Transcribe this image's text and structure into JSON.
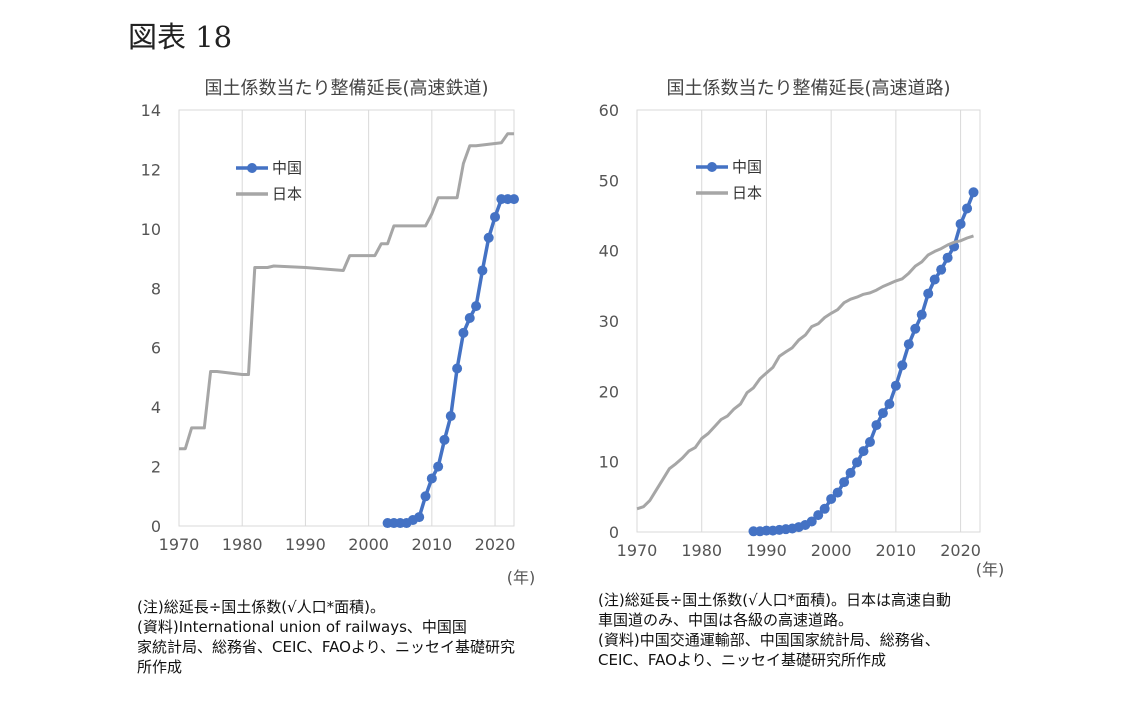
{
  "figure_label": "図表 18",
  "chart_data": [
    {
      "type": "line",
      "title": "国土係数当たり整備延長(高速鉄道)",
      "xlabel": "(年)",
      "ylim": [
        0,
        14
      ],
      "xlim": [
        1970,
        2023
      ],
      "xticks": [
        "1970",
        "1980",
        "1990",
        "2000",
        "2010",
        "2020"
      ],
      "yticks": [
        "0",
        "2",
        "4",
        "6",
        "8",
        "10",
        "12",
        "14"
      ],
      "legend": [
        "中国",
        "日本"
      ],
      "legend_position": "upper-left",
      "colors": {
        "中国": "#4472C4",
        "日本": "#A6A6A6"
      },
      "series": [
        {
          "name": "中国",
          "markers": true,
          "x": [
            2003,
            2004,
            2005,
            2006,
            2007,
            2008,
            2009,
            2010,
            2011,
            2012,
            2013,
            2014,
            2015,
            2016,
            2017,
            2018,
            2019,
            2020,
            2021,
            2022,
            2023
          ],
          "y": [
            0.1,
            0.1,
            0.1,
            0.1,
            0.2,
            0.3,
            1.0,
            1.6,
            2.0,
            2.9,
            3.7,
            5.3,
            6.5,
            7.0,
            7.4,
            8.6,
            9.7,
            10.4,
            11.0,
            11.0,
            11.0
          ]
        },
        {
          "name": "日本",
          "markers": false,
          "x": [
            1970,
            1971,
            1972,
            1973,
            1974,
            1975,
            1976,
            1980,
            1981,
            1982,
            1983,
            1984,
            1985,
            1990,
            1996,
            1997,
            1998,
            2001,
            2002,
            2003,
            2004,
            2005,
            2006,
            2009,
            2010,
            2011,
            2014,
            2015,
            2016,
            2017,
            2019,
            2021,
            2022,
            2023
          ],
          "y": [
            2.6,
            2.6,
            3.3,
            3.3,
            3.3,
            5.2,
            5.2,
            5.1,
            5.1,
            8.7,
            8.7,
            8.7,
            8.75,
            8.7,
            8.6,
            9.1,
            9.1,
            9.1,
            9.5,
            9.5,
            10.1,
            10.1,
            10.1,
            10.1,
            10.5,
            11.05,
            11.05,
            12.2,
            12.8,
            12.8,
            12.85,
            12.9,
            13.2,
            13.2
          ]
        }
      ]
    },
    {
      "type": "line",
      "title": "国土係数当たり整備延長(高速道路)",
      "xlabel": "(年)",
      "ylim": [
        0,
        60
      ],
      "xlim": [
        1970,
        2023
      ],
      "xticks": [
        "1970",
        "1980",
        "1990",
        "2000",
        "2010",
        "2020"
      ],
      "yticks": [
        "0",
        "10",
        "20",
        "30",
        "40",
        "50",
        "60"
      ],
      "legend": [
        "中国",
        "日本"
      ],
      "legend_position": "upper-left",
      "colors": {
        "中国": "#4472C4",
        "日本": "#A6A6A6"
      },
      "series": [
        {
          "name": "中国",
          "markers": true,
          "x": [
            1988,
            1989,
            1990,
            1991,
            1992,
            1993,
            1994,
            1995,
            1996,
            1997,
            1998,
            1999,
            2000,
            2001,
            2002,
            2003,
            2004,
            2005,
            2006,
            2007,
            2008,
            2009,
            2010,
            2011,
            2012,
            2013,
            2014,
            2015,
            2016,
            2017,
            2018,
            2019,
            2020,
            2021,
            2022
          ],
          "y": [
            0.1,
            0.1,
            0.2,
            0.2,
            0.3,
            0.4,
            0.5,
            0.7,
            1.0,
            1.5,
            2.4,
            3.3,
            4.7,
            5.6,
            7.1,
            8.4,
            9.9,
            11.5,
            12.8,
            15.2,
            16.9,
            18.2,
            20.8,
            23.7,
            26.7,
            28.9,
            30.9,
            33.9,
            35.9,
            37.3,
            39.0,
            40.6,
            43.8,
            46.0,
            48.3
          ]
        },
        {
          "name": "日本",
          "markers": false,
          "x": [
            1970,
            1971,
            1972,
            1973,
            1974,
            1975,
            1976,
            1977,
            1978,
            1979,
            1980,
            1981,
            1982,
            1983,
            1984,
            1985,
            1986,
            1987,
            1988,
            1989,
            1990,
            1991,
            1992,
            1993,
            1994,
            1995,
            1996,
            1997,
            1998,
            1999,
            2000,
            2001,
            2002,
            2003,
            2004,
            2005,
            2006,
            2007,
            2008,
            2009,
            2010,
            2011,
            2012,
            2013,
            2014,
            2015,
            2016,
            2017,
            2018,
            2019,
            2020,
            2021,
            2022
          ],
          "y": [
            3.3,
            3.6,
            4.5,
            6.0,
            7.5,
            9.0,
            9.7,
            10.5,
            11.5,
            12.0,
            13.3,
            14.0,
            15.0,
            16.0,
            16.5,
            17.5,
            18.2,
            19.8,
            20.5,
            21.8,
            22.6,
            23.4,
            25.0,
            25.6,
            26.2,
            27.3,
            28.0,
            29.2,
            29.6,
            30.5,
            31.1,
            31.6,
            32.6,
            33.1,
            33.4,
            33.8,
            34.0,
            34.4,
            34.9,
            35.3,
            35.7,
            36.0,
            36.8,
            37.8,
            38.4,
            39.4,
            39.9,
            40.3,
            40.8,
            41.2,
            41.4,
            41.8,
            42.1
          ]
        }
      ]
    }
  ],
  "notes_left": [
    "(注)総延長÷国土係数(√人口*面積)。",
    "(資料)International union of railways、中国国",
    "家統計局、総務省、CEIC、FAOより、ニッセイ基礎研究",
    "所作成"
  ],
  "notes_right": [
    "(注)総延長÷国土係数(√人口*面積)。日本は高速自動",
    "車国道のみ、中国は各級の高速道路。",
    "(資料)中国交通運輸部、中国国家統計局、総務省、",
    "CEIC、FAOより、ニッセイ基礎研究所作成"
  ]
}
